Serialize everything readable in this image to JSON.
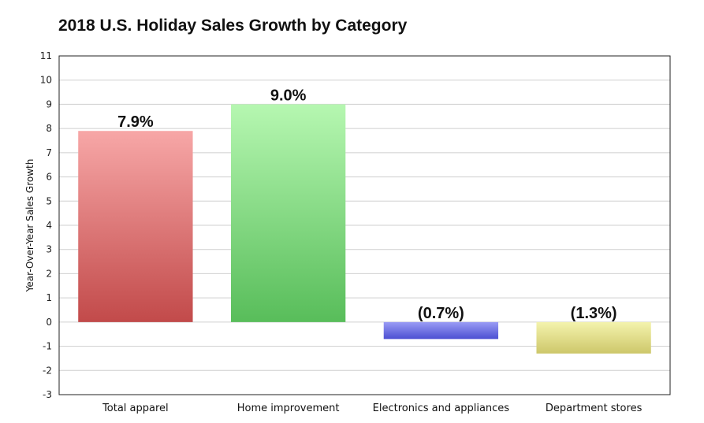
{
  "chart_data": {
    "type": "bar",
    "title": "2018 U.S. Holiday Sales Growth by Category",
    "xlabel": "",
    "ylabel": "Year-Over-Year Sales Growth",
    "ylim": [
      -3,
      11
    ],
    "yticks": [
      -3,
      -2,
      -1,
      0,
      1,
      2,
      3,
      4,
      5,
      6,
      7,
      8,
      9,
      10,
      11
    ],
    "grid": true,
    "categories": [
      "Total apparel",
      "Home improvement",
      "Electronics and appliances",
      "Department stores"
    ],
    "values": [
      7.9,
      9.0,
      -0.7,
      -1.3
    ],
    "data_labels": [
      "7.9%",
      "9.0%",
      "(0.7%)",
      "(1.3%)"
    ],
    "colors": [
      {
        "top": "#f7a7a7",
        "bottom": "#c24a4a"
      },
      {
        "top": "#b6f7b1",
        "bottom": "#58bd5a"
      },
      {
        "top": "#9a9cf5",
        "bottom": "#4c4fd2"
      },
      {
        "top": "#f4f3ad",
        "bottom": "#cdc76a"
      }
    ]
  }
}
